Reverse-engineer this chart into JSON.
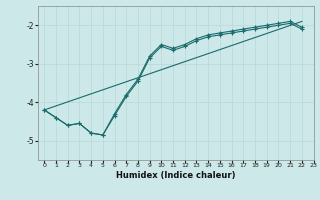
{
  "xlabel": "Humidex (Indice chaleur)",
  "ylabel": "",
  "bg_color": "#cce8e8",
  "grid_color": "#b8d8d8",
  "line_color": "#1a6b6b",
  "marker": "+",
  "xlim": [
    -0.5,
    23
  ],
  "ylim": [
    -5.5,
    -1.5
  ],
  "yticks": [
    -5,
    -4,
    -3,
    -2
  ],
  "xticks": [
    0,
    1,
    2,
    3,
    4,
    5,
    6,
    7,
    8,
    9,
    10,
    11,
    12,
    13,
    14,
    15,
    16,
    17,
    18,
    19,
    20,
    21,
    22,
    23
  ],
  "curve1_x": [
    0,
    1,
    2,
    3,
    4,
    5,
    6,
    7,
    8,
    9,
    10,
    11,
    12,
    13,
    14,
    15,
    16,
    17,
    18,
    19,
    20,
    21,
    22
  ],
  "curve1_y": [
    -4.2,
    -4.4,
    -4.6,
    -4.55,
    -4.8,
    -4.85,
    -4.35,
    -3.85,
    -3.45,
    -2.85,
    -2.55,
    -2.65,
    -2.55,
    -2.4,
    -2.3,
    -2.25,
    -2.2,
    -2.15,
    -2.1,
    -2.05,
    -2.0,
    -1.95,
    -2.1
  ],
  "curve2_x": [
    0,
    1,
    2,
    3,
    4,
    5,
    6,
    7,
    8,
    9,
    10,
    11,
    12,
    13,
    14,
    15,
    16,
    17,
    18,
    19,
    20,
    21,
    22
  ],
  "curve2_y": [
    -4.2,
    -4.4,
    -4.6,
    -4.55,
    -4.8,
    -4.85,
    -4.3,
    -3.8,
    -3.4,
    -2.8,
    -2.5,
    -2.6,
    -2.5,
    -2.35,
    -2.25,
    -2.2,
    -2.15,
    -2.1,
    -2.05,
    -2.0,
    -1.95,
    -1.9,
    -2.05
  ],
  "straight_line_x": [
    0,
    22
  ],
  "straight_line_y": [
    -4.2,
    -1.9
  ]
}
